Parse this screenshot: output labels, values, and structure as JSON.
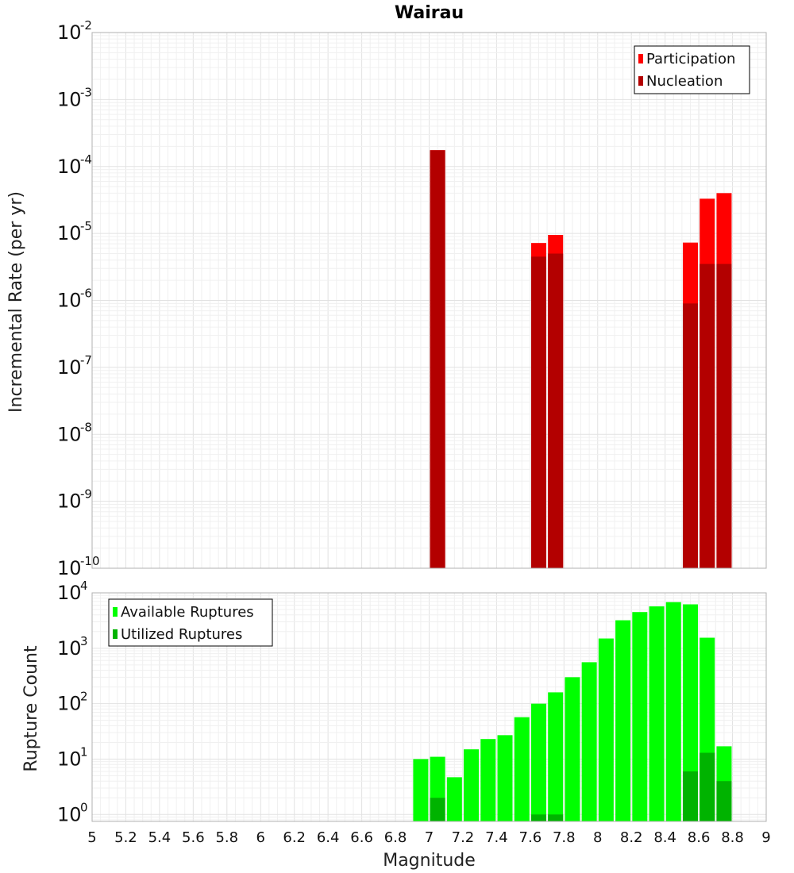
{
  "chart_data": [
    {
      "type": "bar",
      "title": "Wairau",
      "ylabel": "Incremental Rate (per yr)",
      "yscale": "log",
      "ylim": [
        1e-10,
        0.01
      ],
      "xlim": [
        5,
        9
      ],
      "grid": true,
      "legend_position": "top-right",
      "series": [
        {
          "name": "Participation",
          "color": "#ff0000",
          "points": [
            {
              "x": 7.05,
              "y": 0.000175
            },
            {
              "x": 7.65,
              "y": 7.2e-06
            },
            {
              "x": 7.75,
              "y": 9.5e-06
            },
            {
              "x": 8.55,
              "y": 7.3e-06
            },
            {
              "x": 8.65,
              "y": 3.3e-05
            },
            {
              "x": 8.75,
              "y": 4e-05
            }
          ]
        },
        {
          "name": "Nucleation",
          "color": "#b30000",
          "points": [
            {
              "x": 7.05,
              "y": 0.000175
            },
            {
              "x": 7.65,
              "y": 4.5e-06
            },
            {
              "x": 7.75,
              "y": 5e-06
            },
            {
              "x": 8.55,
              "y": 9e-07
            },
            {
              "x": 8.65,
              "y": 3.5e-06
            },
            {
              "x": 8.75,
              "y": 3.5e-06
            }
          ]
        }
      ]
    },
    {
      "type": "bar",
      "ylabel": "Rupture Count",
      "xlabel": "Magnitude",
      "yscale": "log",
      "ylim": [
        0.75,
        10000
      ],
      "xlim": [
        5,
        9
      ],
      "grid": true,
      "legend_position": "top-left",
      "x_ticks": [
        "5",
        "5.2",
        "5.4",
        "5.6",
        "5.8",
        "6",
        "6.2",
        "6.4",
        "6.6",
        "6.8",
        "7",
        "7.2",
        "7.4",
        "7.6",
        "7.8",
        "8",
        "8.2",
        "8.4",
        "8.6",
        "8.8",
        "9"
      ],
      "series": [
        {
          "name": "Available Ruptures",
          "color": "#00ff00",
          "points": [
            {
              "x": 6.95,
              "y": 10
            },
            {
              "x": 7.05,
              "y": 11
            },
            {
              "x": 7.15,
              "y": 4.7
            },
            {
              "x": 7.25,
              "y": 15
            },
            {
              "x": 7.35,
              "y": 23
            },
            {
              "x": 7.45,
              "y": 27
            },
            {
              "x": 7.55,
              "y": 57
            },
            {
              "x": 7.65,
              "y": 100
            },
            {
              "x": 7.75,
              "y": 160
            },
            {
              "x": 7.85,
              "y": 300
            },
            {
              "x": 7.95,
              "y": 560
            },
            {
              "x": 8.05,
              "y": 1500
            },
            {
              "x": 8.15,
              "y": 3200
            },
            {
              "x": 8.25,
              "y": 4500
            },
            {
              "x": 8.35,
              "y": 5700
            },
            {
              "x": 8.45,
              "y": 6800
            },
            {
              "x": 8.55,
              "y": 6200
            },
            {
              "x": 8.65,
              "y": 1550
            },
            {
              "x": 8.75,
              "y": 17
            }
          ]
        },
        {
          "name": "Utilized Ruptures",
          "color": "#00b300",
          "points": [
            {
              "x": 7.05,
              "y": 2
            },
            {
              "x": 7.65,
              "y": 1
            },
            {
              "x": 7.75,
              "y": 1
            },
            {
              "x": 8.55,
              "y": 6
            },
            {
              "x": 8.65,
              "y": 13
            },
            {
              "x": 8.75,
              "y": 4
            }
          ]
        }
      ]
    }
  ]
}
